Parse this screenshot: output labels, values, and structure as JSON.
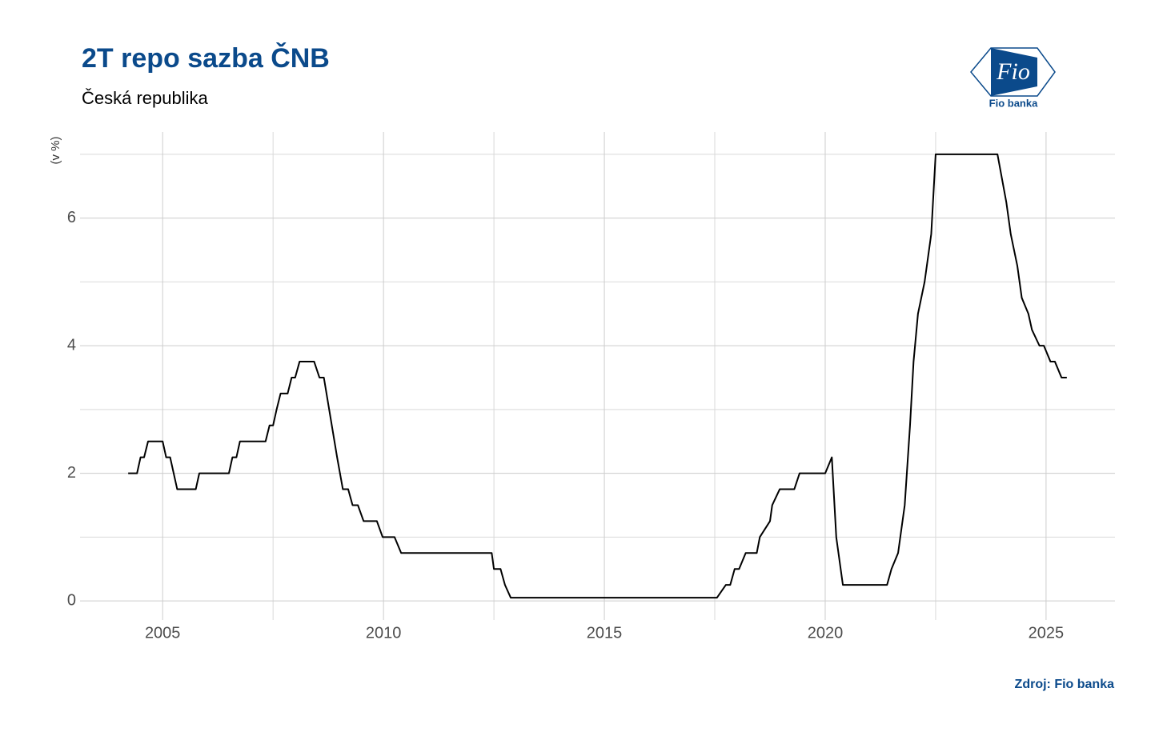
{
  "chart_data": {
    "type": "line",
    "title": "2T repo sazba ČNB",
    "subtitle": "Česká republika",
    "y_label": "(v %)",
    "source": "Zdroj: Fio banka",
    "logo": {
      "mark": "Fio",
      "name": "Fio banka"
    },
    "xlim": [
      2003.13,
      2026.56
    ],
    "ylim": [
      -0.3,
      7.35
    ],
    "xticks": [
      2005,
      2010,
      2015,
      2020,
      2025
    ],
    "yticks": [
      0,
      2,
      4,
      6
    ],
    "grid": true,
    "series": [
      {
        "color": "#000000",
        "x": [
          2004.22,
          2004.42,
          2004.5,
          2004.58,
          2004.67,
          2005.0,
          2005.08,
          2005.17,
          2005.25,
          2005.33,
          2005.75,
          2005.83,
          2006.5,
          2006.58,
          2006.67,
          2006.75,
          2007.33,
          2007.42,
          2007.5,
          2007.58,
          2007.67,
          2007.83,
          2007.92,
          2008.0,
          2008.1,
          2008.43,
          2008.55,
          2008.65,
          2008.95,
          2009.08,
          2009.2,
          2009.3,
          2009.42,
          2009.55,
          2009.85,
          2009.98,
          2010.25,
          2010.4,
          2012.45,
          2012.5,
          2012.65,
          2012.75,
          2012.88,
          2017.55,
          2017.75,
          2017.85,
          2017.95,
          2018.05,
          2018.2,
          2018.45,
          2018.52,
          2018.75,
          2018.8,
          2018.97,
          2019.3,
          2019.42,
          2020.0,
          2020.15,
          2020.25,
          2020.4,
          2021.4,
          2021.5,
          2021.65,
          2021.8,
          2021.92,
          2022.0,
          2022.1,
          2022.25,
          2022.4,
          2022.5,
          2023.9,
          2024.1,
          2024.2,
          2024.35,
          2024.45,
          2024.6,
          2024.68,
          2024.85,
          2024.95,
          2025.1,
          2025.2,
          2025.35,
          2025.47
        ],
        "values": [
          2.0,
          2.0,
          2.25,
          2.25,
          2.5,
          2.5,
          2.25,
          2.25,
          2.0,
          1.75,
          1.75,
          2.0,
          2.0,
          2.25,
          2.25,
          2.5,
          2.5,
          2.75,
          2.75,
          3.0,
          3.25,
          3.25,
          3.5,
          3.5,
          3.75,
          3.75,
          3.5,
          3.5,
          2.25,
          1.75,
          1.75,
          1.5,
          1.5,
          1.25,
          1.25,
          1.0,
          1.0,
          0.75,
          0.75,
          0.5,
          0.5,
          0.25,
          0.05,
          0.05,
          0.25,
          0.25,
          0.5,
          0.5,
          0.75,
          0.75,
          1.0,
          1.25,
          1.5,
          1.75,
          1.75,
          2.0,
          2.0,
          2.25,
          1.0,
          0.25,
          0.25,
          0.5,
          0.75,
          1.5,
          2.75,
          3.75,
          4.5,
          5.0,
          5.75,
          7.0,
          7.0,
          6.25,
          5.75,
          5.25,
          4.75,
          4.5,
          4.25,
          4.0,
          4.0,
          3.75,
          3.75,
          3.5,
          3.5
        ]
      }
    ]
  }
}
